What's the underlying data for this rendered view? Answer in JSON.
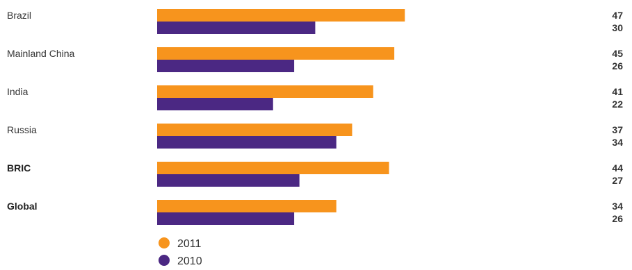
{
  "chart_data": {
    "type": "bar",
    "orientation": "horizontal",
    "categories": [
      "Brazil",
      "Mainland China",
      "India",
      "Russia",
      "BRIC",
      "Global"
    ],
    "bold_categories": [
      "BRIC",
      "Global"
    ],
    "series": [
      {
        "name": "2011",
        "color": "#F7941D",
        "values": [
          47,
          45,
          41,
          37,
          44,
          34
        ]
      },
      {
        "name": "2010",
        "color": "#4B2883",
        "values": [
          30,
          26,
          22,
          34,
          27,
          26
        ]
      }
    ],
    "xlim": [
      0,
      100
    ],
    "grid": false,
    "legend_position": "bottom-left"
  }
}
